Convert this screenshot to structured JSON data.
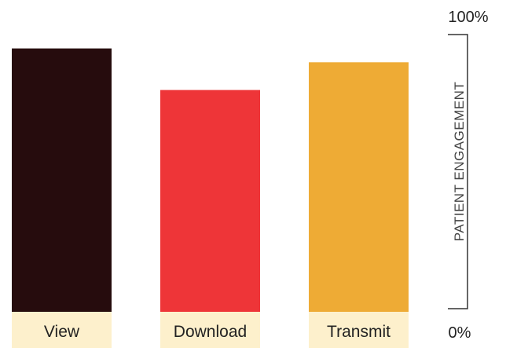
{
  "chart_data": {
    "type": "bar",
    "categories": [
      "View",
      "Download",
      "Transmit"
    ],
    "values": [
      95,
      80,
      90
    ],
    "colors": [
      "#260c0d",
      "#ee3538",
      "#eeab35"
    ],
    "label_background": "#fdf0cc",
    "title": "",
    "xlabel": "",
    "ylabel": "PATIENT ENGAGEMENT",
    "ylim": [
      0,
      100
    ],
    "y_ticks": [
      "0%",
      "100%"
    ],
    "grid": false,
    "legend": "none"
  }
}
